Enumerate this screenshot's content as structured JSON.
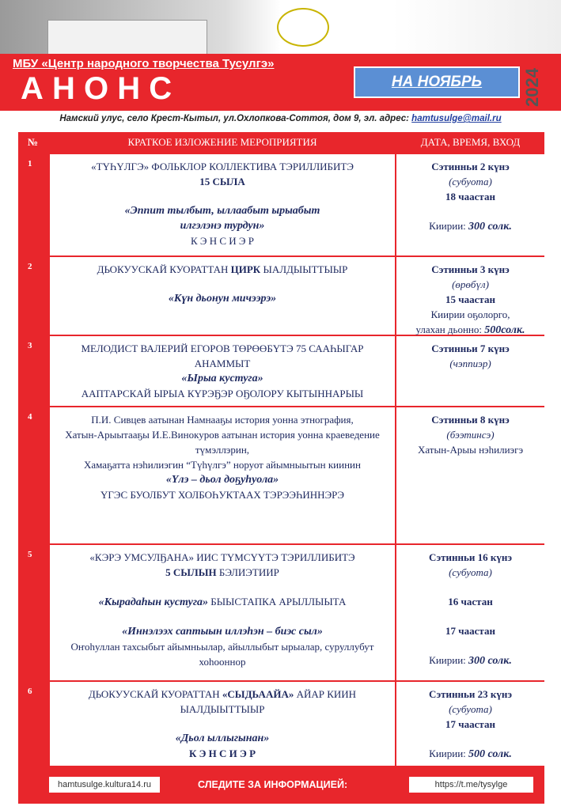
{
  "header": {
    "org": "МБУ «Центр народного творчества Тусулгэ»",
    "title": "А Н О Н С",
    "month": "НА  НОЯБРЬ",
    "year": "2024",
    "address": "Намский улус, село Крест-Кытыл, ул.Охлопкова-Соттоя, дом 9,  эл. адрес:",
    "email": "hamtusulge@mail.ru"
  },
  "table": {
    "columns": [
      "№",
      "КРАТКОЕ ИЗЛОЖЕНИЕ МЕРОПРИЯТИЯ",
      "ДАТА, ВРЕМЯ, ВХОД"
    ],
    "rows": [
      {
        "num": "1",
        "desc": [
          "«ТҮҺҮЛГЭ»  ФОЛЬКЛОР КОЛЛЕКТИВА  ТЭРИЛЛИБИТЭ",
          "15 СЫЛА",
          "«Эппит тылбыт, ыллаабыт ырыабыт",
          "илгэлэнэ турдун»",
          "К Э Н С И Э Р"
        ],
        "date": [
          "Сэтинньи 2 күнэ",
          "(субуота)",
          "18 чаастан",
          [
            "Киирии:",
            "300 солк."
          ]
        ]
      },
      {
        "num": "2",
        "desc": [
          [
            "ДЬОКУУСКАЙ КУОРАТТАН ",
            "ЦИРК",
            " ЫАЛДЫЫТТЫЫР"
          ],
          "«Күн дьонун  мичээрэ»"
        ],
        "date": [
          "Сэтинньи 3 күнэ",
          "(өрөбүл)",
          "15 чаастан",
          "Киирии оҕолорго,",
          [
            "улахан  дьонно:",
            "500солк."
          ]
        ]
      },
      {
        "num": "3",
        "desc": [
          "МЕЛОДИСТ ВАЛЕРИЙ  ЕГОРОВ ТӨРӨӨБҮТЭ 75 СААҺЫГАР",
          "АНАММЫТ",
          "«Ырыа кустуга»",
          "ААПТАРСКАЙ  ЫРЫА КҮРЭҔЭР ОҔОЛОРУ КЫТЫННАРЫЫ"
        ],
        "date": [
          "Сэтинньи 7 күнэ",
          "(чэппиэр)"
        ]
      },
      {
        "num": "4",
        "desc": [
          "П.И. Сивцев аатынан  Намнааҕы  история  уонна этнография,",
          "Хатын-Арыытааҕы   И.Е.Винокуров аатынан  история уонна краеведение түмэллэрин,",
          "Хамаҕатта нэһилиэгин  “Түһүлгэ”  норуот айымныытын киинин",
          "«Үлэ – дьол доҕуһуола»",
          "ҮГЭС БУОЛБУТ ХОЛБОҺУКТААХ ТЭРЭЭҺИННЭРЭ"
        ],
        "date": [
          "Сэтинньи 8  күнэ",
          "(бээтинсэ)",
          "Хатын-Арыы нэһилиэгэ"
        ]
      },
      {
        "num": "5",
        "desc": [
          [
            "«КЭРЭ УМСУЛҔАНА»",
            "  ИИС ТҮМСҮҮТЭ ТЭРИЛЛИБИТЭ"
          ],
          [
            "5  СЫЛЫН",
            " БЭЛИЭТИИР"
          ],
          [
            "«Кырадаһын кустуга»",
            "  БЫЫСТАПКА  АРЫЛЛЫЫТА"
          ],
          "«Иннэлээх саптыын иллэһэн – биэс сыл»",
          "Оҥоһуллан тахсыбыт айымньылар, айыллыбыт ырыалар, суруллубут хоһооннор"
        ],
        "date": [
          "Сэтинньи 16 күнэ",
          "(субуота)",
          "16 частан",
          "17 чаастан",
          [
            "Киирии:",
            "300 солк."
          ]
        ]
      },
      {
        "num": "6",
        "desc": [
          [
            "ДЬОКУУСКАЙ КУОРАТТАН  ",
            "«СЫДЬААЙА»",
            "  АЙАР  КИИН"
          ],
          "ЫАЛДЫЫТТЫЫР",
          "«Дьол ыллыгынан»",
          "К Э Н С И Э Р"
        ],
        "date": [
          "Сэтинньи 23 күнэ",
          "(субуота)",
          "17 чаастан",
          [
            "Киирии:",
            "500 солк."
          ]
        ]
      }
    ]
  },
  "footer": {
    "site": "hamtusulge.kultura14.ru",
    "follow": "СЛЕДИТЕ ЗА ИНФОРМАЦИЕЙ:",
    "telegram": "https://t.me/tysylge"
  }
}
